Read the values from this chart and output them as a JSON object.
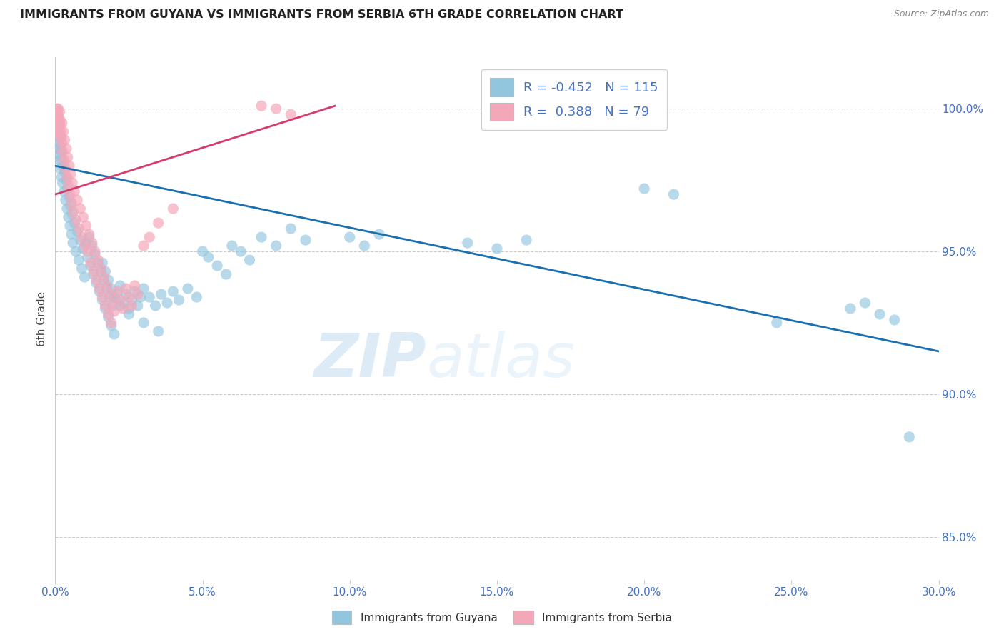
{
  "title": "IMMIGRANTS FROM GUYANA VS IMMIGRANTS FROM SERBIA 6TH GRADE CORRELATION CHART",
  "source": "Source: ZipAtlas.com",
  "xlabel_vals": [
    0.0,
    5.0,
    10.0,
    15.0,
    20.0,
    25.0,
    30.0
  ],
  "ylabel_vals": [
    85.0,
    90.0,
    95.0,
    100.0
  ],
  "xmin": 0.0,
  "xmax": 30.0,
  "ymin": 83.5,
  "ymax": 101.8,
  "ylabel": "6th Grade",
  "legend_blue_label": "Immigrants from Guyana",
  "legend_pink_label": "Immigrants from Serbia",
  "r_blue": "-0.452",
  "n_blue": "115",
  "r_pink": "0.388",
  "n_pink": "79",
  "blue_color": "#92c5de",
  "pink_color": "#f4a7b9",
  "trendline_blue_color": "#1a6faf",
  "trendline_pink_color": "#d63b6a",
  "watermark_zip": "ZIP",
  "watermark_atlas": "atlas",
  "blue_trend_x": [
    0.0,
    30.0
  ],
  "blue_trend_y": [
    98.0,
    91.5
  ],
  "pink_trend_x": [
    0.0,
    9.5
  ],
  "pink_trend_y": [
    97.0,
    100.1
  ],
  "blue_scatter": [
    [
      0.05,
      99.7
    ],
    [
      0.07,
      99.5
    ],
    [
      0.08,
      99.3
    ],
    [
      0.09,
      99.0
    ],
    [
      0.1,
      98.8
    ],
    [
      0.1,
      99.5
    ],
    [
      0.11,
      99.1
    ],
    [
      0.12,
      98.6
    ],
    [
      0.13,
      99.3
    ],
    [
      0.14,
      98.4
    ],
    [
      0.15,
      99.0
    ],
    [
      0.16,
      98.2
    ],
    [
      0.17,
      98.7
    ],
    [
      0.18,
      97.9
    ],
    [
      0.2,
      98.5
    ],
    [
      0.22,
      97.6
    ],
    [
      0.23,
      98.2
    ],
    [
      0.25,
      97.4
    ],
    [
      0.27,
      98.0
    ],
    [
      0.3,
      97.1
    ],
    [
      0.32,
      97.8
    ],
    [
      0.35,
      96.8
    ],
    [
      0.38,
      97.5
    ],
    [
      0.4,
      96.5
    ],
    [
      0.42,
      97.2
    ],
    [
      0.45,
      96.2
    ],
    [
      0.48,
      96.9
    ],
    [
      0.5,
      95.9
    ],
    [
      0.52,
      96.6
    ],
    [
      0.55,
      95.6
    ],
    [
      0.58,
      96.3
    ],
    [
      0.6,
      95.3
    ],
    [
      0.65,
      96.0
    ],
    [
      0.7,
      95.0
    ],
    [
      0.75,
      95.7
    ],
    [
      0.8,
      94.7
    ],
    [
      0.85,
      95.4
    ],
    [
      0.9,
      94.4
    ],
    [
      0.95,
      95.1
    ],
    [
      1.0,
      94.1
    ],
    [
      1.05,
      95.3
    ],
    [
      1.1,
      94.8
    ],
    [
      1.15,
      95.5
    ],
    [
      1.2,
      94.5
    ],
    [
      1.25,
      95.2
    ],
    [
      1.3,
      94.2
    ],
    [
      1.35,
      94.9
    ],
    [
      1.4,
      93.9
    ],
    [
      1.45,
      94.6
    ],
    [
      1.5,
      93.6
    ],
    [
      1.55,
      94.3
    ],
    [
      1.6,
      93.3
    ],
    [
      1.65,
      94.0
    ],
    [
      1.7,
      93.0
    ],
    [
      1.75,
      93.7
    ],
    [
      1.8,
      92.7
    ],
    [
      1.85,
      93.4
    ],
    [
      1.9,
      92.4
    ],
    [
      1.95,
      93.1
    ],
    [
      2.0,
      92.1
    ],
    [
      2.1,
      93.5
    ],
    [
      2.2,
      93.8
    ],
    [
      2.3,
      93.2
    ],
    [
      2.4,
      93.5
    ],
    [
      2.5,
      93.0
    ],
    [
      2.6,
      93.3
    ],
    [
      2.7,
      93.6
    ],
    [
      2.8,
      93.1
    ],
    [
      2.9,
      93.4
    ],
    [
      3.0,
      93.7
    ],
    [
      3.2,
      93.4
    ],
    [
      3.4,
      93.1
    ],
    [
      3.6,
      93.5
    ],
    [
      3.8,
      93.2
    ],
    [
      4.0,
      93.6
    ],
    [
      4.2,
      93.3
    ],
    [
      4.5,
      93.7
    ],
    [
      4.8,
      93.4
    ],
    [
      5.0,
      95.0
    ],
    [
      5.2,
      94.8
    ],
    [
      5.5,
      94.5
    ],
    [
      5.8,
      94.2
    ],
    [
      6.0,
      95.2
    ],
    [
      6.3,
      95.0
    ],
    [
      6.6,
      94.7
    ],
    [
      7.0,
      95.5
    ],
    [
      7.5,
      95.2
    ],
    [
      8.0,
      95.8
    ],
    [
      8.5,
      95.4
    ],
    [
      10.0,
      95.5
    ],
    [
      10.5,
      95.2
    ],
    [
      11.0,
      95.6
    ],
    [
      14.0,
      95.3
    ],
    [
      15.0,
      95.1
    ],
    [
      16.0,
      95.4
    ],
    [
      20.0,
      97.2
    ],
    [
      21.0,
      97.0
    ],
    [
      24.5,
      92.5
    ],
    [
      27.0,
      93.0
    ],
    [
      27.5,
      93.2
    ],
    [
      28.0,
      92.8
    ],
    [
      28.5,
      92.6
    ],
    [
      29.0,
      88.5
    ],
    [
      1.6,
      94.6
    ],
    [
      1.7,
      94.3
    ],
    [
      1.8,
      94.0
    ],
    [
      1.9,
      93.7
    ],
    [
      2.0,
      93.4
    ],
    [
      2.2,
      93.1
    ],
    [
      2.5,
      92.8
    ],
    [
      3.0,
      92.5
    ],
    [
      3.5,
      92.2
    ]
  ],
  "pink_scatter": [
    [
      0.05,
      100.0
    ],
    [
      0.07,
      99.8
    ],
    [
      0.08,
      99.6
    ],
    [
      0.09,
      99.4
    ],
    [
      0.1,
      99.2
    ],
    [
      0.1,
      100.0
    ],
    [
      0.11,
      99.7
    ],
    [
      0.12,
      99.5
    ],
    [
      0.13,
      99.3
    ],
    [
      0.14,
      99.1
    ],
    [
      0.15,
      99.9
    ],
    [
      0.16,
      99.6
    ],
    [
      0.17,
      99.4
    ],
    [
      0.18,
      99.2
    ],
    [
      0.2,
      99.0
    ],
    [
      0.22,
      98.8
    ],
    [
      0.23,
      99.5
    ],
    [
      0.25,
      98.5
    ],
    [
      0.27,
      99.2
    ],
    [
      0.3,
      98.2
    ],
    [
      0.32,
      98.9
    ],
    [
      0.35,
      97.9
    ],
    [
      0.38,
      98.6
    ],
    [
      0.4,
      97.6
    ],
    [
      0.42,
      98.3
    ],
    [
      0.45,
      97.3
    ],
    [
      0.48,
      98.0
    ],
    [
      0.5,
      97.0
    ],
    [
      0.52,
      97.7
    ],
    [
      0.55,
      96.7
    ],
    [
      0.58,
      97.4
    ],
    [
      0.6,
      96.4
    ],
    [
      0.65,
      97.1
    ],
    [
      0.7,
      96.1
    ],
    [
      0.75,
      96.8
    ],
    [
      0.8,
      95.8
    ],
    [
      0.85,
      96.5
    ],
    [
      0.9,
      95.5
    ],
    [
      0.95,
      96.2
    ],
    [
      1.0,
      95.2
    ],
    [
      1.05,
      95.9
    ],
    [
      1.1,
      95.0
    ],
    [
      1.15,
      95.6
    ],
    [
      1.2,
      94.6
    ],
    [
      1.25,
      95.3
    ],
    [
      1.3,
      94.3
    ],
    [
      1.35,
      95.0
    ],
    [
      1.4,
      94.0
    ],
    [
      1.45,
      94.7
    ],
    [
      1.5,
      93.7
    ],
    [
      1.55,
      94.4
    ],
    [
      1.6,
      93.4
    ],
    [
      1.65,
      94.1
    ],
    [
      1.7,
      93.1
    ],
    [
      1.75,
      93.8
    ],
    [
      1.8,
      92.8
    ],
    [
      1.85,
      93.5
    ],
    [
      1.9,
      92.5
    ],
    [
      1.95,
      93.2
    ],
    [
      2.0,
      92.9
    ],
    [
      2.1,
      93.6
    ],
    [
      2.2,
      93.3
    ],
    [
      2.3,
      93.0
    ],
    [
      2.4,
      93.7
    ],
    [
      2.5,
      93.4
    ],
    [
      2.6,
      93.1
    ],
    [
      2.7,
      93.8
    ],
    [
      2.8,
      93.5
    ],
    [
      3.0,
      95.2
    ],
    [
      3.2,
      95.5
    ],
    [
      3.5,
      96.0
    ],
    [
      4.0,
      96.5
    ],
    [
      7.0,
      100.1
    ],
    [
      7.5,
      100.0
    ],
    [
      8.0,
      99.8
    ],
    [
      0.06,
      99.9
    ],
    [
      0.08,
      99.7
    ]
  ]
}
